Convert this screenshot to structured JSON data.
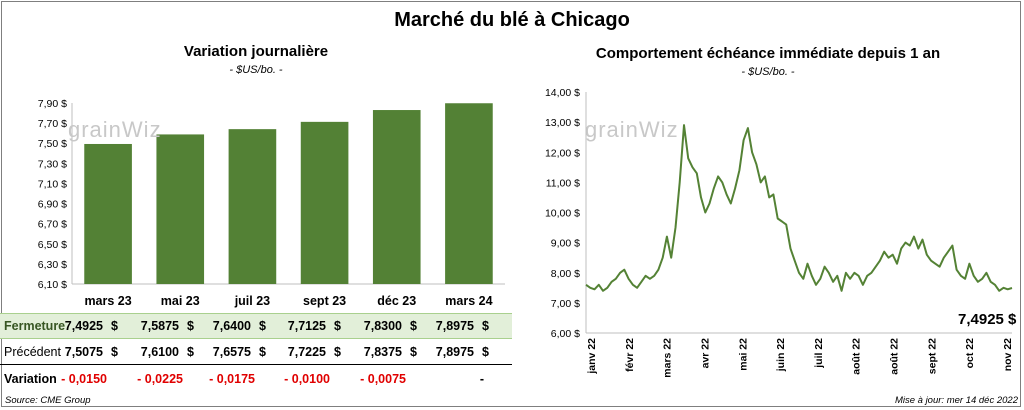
{
  "title": "Marché du blé à Chicago",
  "logo_text": "grainWiz",
  "left": {
    "title": "Variation  journalière",
    "unit": "- $US/bo. -"
  },
  "right": {
    "title": "Comportement  échéance immédiate depuis 1 an",
    "unit": "- $US/bo. -",
    "last_value": "7,4925 $"
  },
  "table": {
    "row_labels": {
      "close": "Fermeture",
      "previous": "Précédent",
      "change": "Variation"
    },
    "contracts": [
      "mars 23",
      "mai 23",
      "juil 23",
      "sept 23",
      "déc 23",
      "mars 24"
    ],
    "close": [
      "7,4925",
      "7,5875",
      "7,6400",
      "7,7125",
      "7,8300",
      "7,8975"
    ],
    "previous": [
      "7,5075",
      "7,6100",
      "7,6575",
      "7,7225",
      "7,8375",
      "7,8975"
    ],
    "change": [
      "- 0,0150",
      "- 0,0225",
      "- 0,0175",
      "- 0,0100",
      "- 0,0075",
      "-"
    ],
    "currency": "$"
  },
  "footer": {
    "source": "Source: CME Group",
    "updated": "Mise à jour: mer 14 déc 2022"
  },
  "colors": {
    "bar": "#538135",
    "line": "#548235",
    "close_row_bg": "#e2efd9",
    "negative": "#e00000"
  },
  "chart_data": [
    {
      "type": "bar",
      "title": "Variation  journalière",
      "subtitle": "- $US/bo. -",
      "categories": [
        "mars 23",
        "mai 23",
        "juil 23",
        "sept 23",
        "déc 23",
        "mars 24"
      ],
      "values": [
        7.4925,
        7.5875,
        7.64,
        7.7125,
        7.83,
        7.8975
      ],
      "ylim": [
        6.1,
        7.9
      ],
      "yticks": [
        6.1,
        6.3,
        6.5,
        6.7,
        6.9,
        7.1,
        7.3,
        7.5,
        7.7,
        7.9
      ],
      "ytick_labels": [
        "6,10 $",
        "6,30 $",
        "6,50 $",
        "6,70 $",
        "6,90 $",
        "7,10 $",
        "7,30 $",
        "7,50 $",
        "7,70 $",
        "7,90 $"
      ],
      "grid": false
    },
    {
      "type": "line",
      "title": "Comportement  échéance immédiate depuis 1 an",
      "subtitle": "- $US/bo. -",
      "x_ticks": [
        "janv 22",
        "févr 22",
        "mars 22",
        "avr 22",
        "mai 22",
        "juin 22",
        "juil 22",
        "août 22",
        "août 22",
        "sept 22",
        "oct 22",
        "nov 22"
      ],
      "ylim": [
        6,
        14
      ],
      "yticks": [
        6,
        7,
        8,
        9,
        10,
        11,
        12,
        13,
        14
      ],
      "ytick_labels": [
        "6,00 $",
        "7,00 $",
        "8,00 $",
        "9,00 $",
        "10,00 $",
        "11,00 $",
        "12,00 $",
        "13,00 $",
        "14,00 $"
      ],
      "x_range": [
        0,
        100
      ],
      "x": [
        0,
        1,
        2,
        3,
        4,
        5,
        6,
        7,
        8,
        9,
        10,
        11,
        12,
        13,
        14,
        15,
        16,
        17,
        18,
        19,
        20,
        21,
        22,
        23,
        24,
        25,
        26,
        27,
        28,
        29,
        30,
        31,
        32,
        33,
        34,
        35,
        36,
        37,
        38,
        39,
        40,
        41,
        42,
        43,
        44,
        45,
        46,
        47,
        48,
        49,
        50,
        51,
        52,
        53,
        54,
        55,
        56,
        57,
        58,
        59,
        60,
        61,
        62,
        63,
        64,
        65,
        66,
        67,
        68,
        69,
        70,
        71,
        72,
        73,
        74,
        75,
        76,
        77,
        78,
        79,
        80,
        81,
        82,
        83,
        84,
        85,
        86,
        87,
        88,
        89,
        90,
        91,
        92,
        93,
        94,
        95,
        96,
        97,
        98,
        99,
        100
      ],
      "values": [
        7.6,
        7.5,
        7.45,
        7.6,
        7.4,
        7.5,
        7.7,
        7.8,
        8.0,
        8.1,
        7.8,
        7.6,
        7.5,
        7.7,
        7.9,
        7.8,
        7.9,
        8.1,
        8.5,
        9.2,
        8.5,
        9.5,
        11.0,
        12.9,
        11.8,
        11.5,
        11.3,
        10.5,
        10.0,
        10.3,
        10.8,
        11.2,
        11.0,
        10.6,
        10.3,
        10.8,
        11.4,
        12.4,
        12.8,
        12.0,
        11.6,
        11.0,
        11.2,
        10.5,
        10.6,
        9.8,
        9.7,
        9.6,
        8.8,
        8.4,
        8.0,
        7.8,
        8.3,
        7.9,
        7.6,
        7.8,
        8.2,
        8.0,
        7.7,
        7.9,
        7.4,
        8.0,
        7.8,
        8.0,
        7.9,
        7.6,
        7.9,
        8.0,
        8.2,
        8.4,
        8.7,
        8.5,
        8.6,
        8.3,
        8.8,
        9.0,
        8.9,
        9.2,
        8.8,
        9.1,
        8.6,
        8.4,
        8.3,
        8.2,
        8.5,
        8.7,
        8.9,
        8.1,
        7.9,
        7.8,
        8.3,
        7.9,
        7.7,
        7.8,
        8.0,
        7.7,
        7.6,
        7.4,
        7.5,
        7.45,
        7.4925
      ]
    }
  ]
}
